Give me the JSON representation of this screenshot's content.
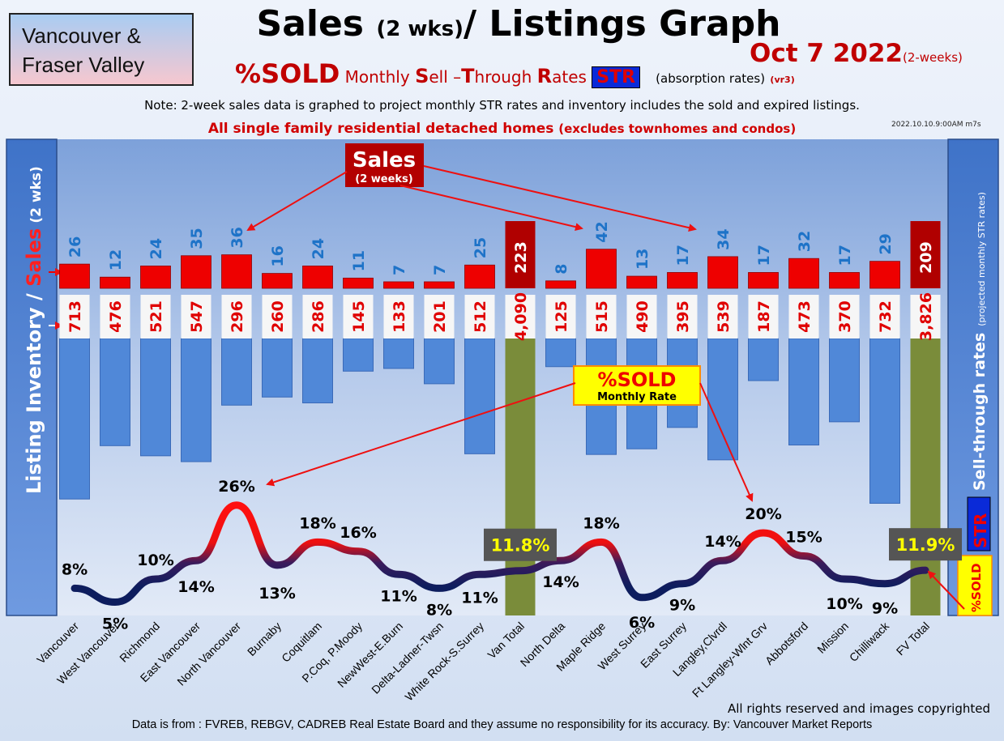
{
  "region": [
    "Vancouver &",
    "Fraser Valley"
  ],
  "title_main": "Sales",
  "title_small": "(2 wks)",
  "title_rest": "/ Listings Graph",
  "date": "Oct 7  2022",
  "date_note": "(2-weeks)",
  "subtitle_pct": "%SOLD",
  "subtitle_parts": [
    {
      "text": "Monthly ",
      "big": false
    },
    {
      "text": "S",
      "big": true
    },
    {
      "text": "ell –",
      "big": false
    },
    {
      "text": "T",
      "big": true
    },
    {
      "text": "hrough ",
      "big": false
    },
    {
      "text": "R",
      "big": true
    },
    {
      "text": "ates ",
      "big": false
    }
  ],
  "subtitle_str": "STR",
  "subtitle_absorb": "(absorption rates)",
  "subtitle_vr": "(vr3)",
  "note": "Note: 2-week sales data is graphed to project monthly STR rates and inventory includes the sold and expired listings.",
  "scope_bold": "All single family residential detached homes",
  "scope_paren": "(excludes townhomes and condos)",
  "stamp": "2022.10.10.9:00AM m7s",
  "left_axis_inventory": "Listing Inventory / ",
  "left_axis_sales": "Sales",
  "left_axis_wks": "(2  wks)",
  "right_axis_main": "Sell-through rates",
  "right_axis_sub": "(projected monthly STR rates)",
  "right_tag_sold": "%SOLD",
  "right_tag_str": "STR",
  "callout_sales": "Sales",
  "callout_sales_sub": "(2 weeks)",
  "callout_sold": "%SOLD",
  "callout_sold_sub": "Monthly Rate",
  "footer_rights": "All rights reserved and  images copyrighted",
  "footer_source": "Data is from : FVREB, REBGV, CADREB Real Estate Board and they assume no responsibility for its accuracy. By: Vancouver Market Reports",
  "colors": {
    "sales": "#ee0000",
    "sales_total": "#b00000",
    "inventory": "#5088d8",
    "inventory_total": "#7a8c3a",
    "line_high": "#ff1010",
    "line_low": "#0d1d5e",
    "sales_text": "#1e73c8"
  },
  "chart_data": {
    "type": "bar",
    "categories": [
      "Vancouver",
      "West Vancouver",
      "Richmond",
      "East Vancouver",
      "North Vancouver",
      "Burnaby",
      "Coquitlam",
      "P.Coq, P.Moody",
      "NewWest-E.Burn",
      "Delta-Ladner-Twsn",
      "White Rock-S.Surrey",
      "Van Total",
      "North Delta",
      "Maple Ridge",
      "West Surrey",
      "East Surrey",
      "Langley,Clvrdl",
      "Ft Langley-Wlnt Grv",
      "Abbotsford",
      "Mission",
      "Chilliwack",
      "FV Total"
    ],
    "totals": [
      "Van Total",
      "FV Total"
    ],
    "series": [
      {
        "name": "Sales",
        "values": [
          26,
          12,
          24,
          35,
          36,
          16,
          24,
          11,
          7,
          7,
          25,
          223,
          8,
          42,
          13,
          17,
          34,
          17,
          32,
          17,
          29,
          209
        ],
        "labels": [
          "26",
          "12",
          "24",
          "35",
          "36",
          "16",
          "24",
          "11",
          "7",
          "7",
          "25",
          "223",
          "8",
          "42",
          "13",
          "17",
          "34",
          "17",
          "32",
          "17",
          "29",
          "209"
        ]
      },
      {
        "name": "Listing Inventory",
        "values": [
          713,
          476,
          521,
          547,
          296,
          260,
          286,
          145,
          133,
          201,
          512,
          4090,
          125,
          515,
          490,
          395,
          539,
          187,
          473,
          370,
          732,
          3826
        ],
        "labels": [
          "713",
          "476",
          "521",
          "547",
          "296",
          "260",
          "286",
          "145",
          "133",
          "201",
          "512",
          "4,090",
          "125",
          "515",
          "490",
          "395",
          "539",
          "187",
          "473",
          "370",
          "732",
          "3,826"
        ]
      },
      {
        "name": "%SOLD",
        "values": [
          8,
          5,
          10,
          14,
          26,
          13,
          18,
          16,
          11,
          8,
          11,
          11.8,
          14,
          18,
          6,
          9,
          14,
          20,
          15,
          10,
          9,
          11.9
        ],
        "labels": [
          "8%",
          "5%",
          "10%",
          "14%",
          "26%",
          "13%",
          "18%",
          "16%",
          "11%",
          "8%",
          "11%",
          "11.8%",
          "14%",
          "18%",
          "6%",
          "9%",
          "14%",
          "20%",
          "15%",
          "10%",
          "9%",
          "11.9%"
        ]
      }
    ]
  }
}
